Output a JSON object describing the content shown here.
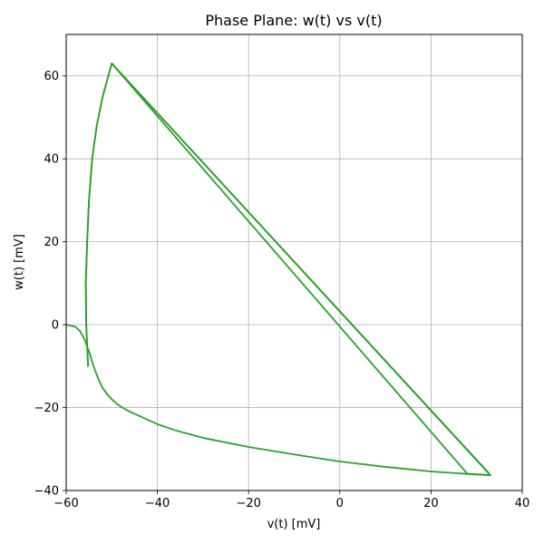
{
  "chart_data": {
    "type": "line",
    "title": "Phase Plane: w(t) vs v(t)",
    "xlabel": "v(t) [mV]",
    "ylabel": "w(t) [mV]",
    "xlim": [
      -60,
      40
    ],
    "ylim": [
      -40,
      70
    ],
    "xticks": [
      -60,
      -40,
      -20,
      0,
      20,
      40
    ],
    "yticks": [
      -40,
      -20,
      0,
      20,
      40,
      60
    ],
    "xtick_labels": [
      "−60",
      "−40",
      "−20",
      "0",
      "20",
      "40"
    ],
    "ytick_labels": [
      "−40",
      "−20",
      "0",
      "20",
      "40",
      "60"
    ],
    "grid": true,
    "series": [
      {
        "color": "#2ca02c",
        "x": [
          -60,
          -58,
          -57,
          -56,
          -55,
          -54,
          -53,
          -52,
          -51,
          -50,
          -49,
          -48,
          -46,
          -44,
          -42,
          -40,
          -36,
          -30,
          -20,
          -10,
          0,
          10,
          20,
          28,
          33
        ],
        "y": [
          0,
          -0.5,
          -1.5,
          -3.5,
          -6.5,
          -10,
          -13,
          -15.3,
          -16.8,
          -18,
          -19,
          -19.8,
          -21,
          -22,
          -23,
          -24,
          -25.5,
          -27.3,
          -29.5,
          -31.3,
          -33,
          -34.3,
          -35.4,
          -36,
          -36.3
        ]
      },
      {
        "color": "#2ca02c",
        "x": [
          -55.2,
          -55.6,
          -55.7,
          -55.4,
          -55,
          -54.3,
          -53.3,
          -52,
          -50
        ],
        "y": [
          -10,
          0,
          10,
          20,
          30,
          40,
          48,
          55,
          63
        ]
      },
      {
        "color": "#2ca02c",
        "x": [
          -55.2,
          -55.6,
          -55.7,
          -55.4,
          -55,
          -54.3,
          -53.3,
          -52,
          -50,
          33,
          -50,
          33
        ],
        "y": [
          -10,
          0,
          10,
          20,
          30,
          40,
          48,
          55,
          63,
          -36.3,
          63,
          -36.3
        ]
      },
      {
        "color": "#2ca02c",
        "x": [
          -50,
          28,
          33
        ],
        "y": [
          63,
          -36,
          -36.3
        ]
      },
      {
        "color": "#2ca02c",
        "x": [
          -50,
          32.5,
          33
        ],
        "y": [
          63,
          -35.6,
          -36.3
        ]
      }
    ]
  }
}
